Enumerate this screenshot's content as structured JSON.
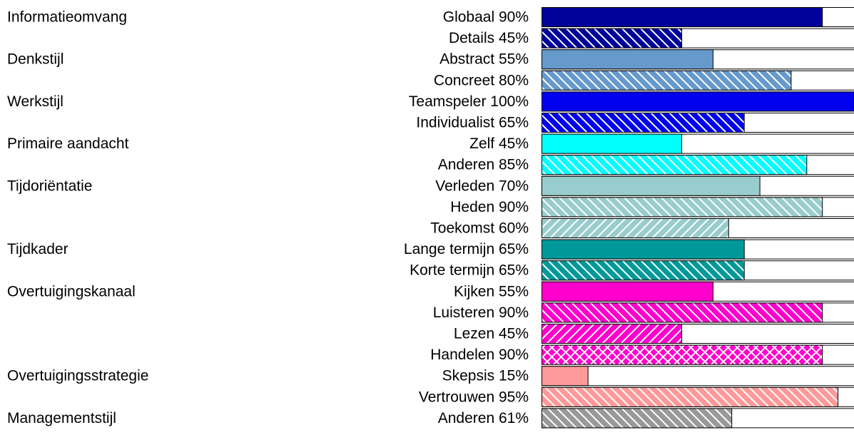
{
  "chart_data": {
    "type": "bar",
    "orientation": "horizontal",
    "xlim": [
      0,
      100
    ],
    "unit": "%",
    "groups": [
      {
        "label": "Informatieomvang",
        "rows": [
          {
            "label": "Globaal 90%",
            "value": 90,
            "color": "#00009B",
            "pattern": "solid"
          },
          {
            "label": "Details 45%",
            "value": 45,
            "color": "#00009B",
            "pattern": "back-diagonal"
          }
        ]
      },
      {
        "label": "Denkstijl",
        "rows": [
          {
            "label": "Abstract 55%",
            "value": 55,
            "color": "#6699CC",
            "pattern": "solid"
          },
          {
            "label": "Concreet 80%",
            "value": 80,
            "color": "#6699CC",
            "pattern": "back-diagonal"
          }
        ]
      },
      {
        "label": "Werkstijl",
        "rows": [
          {
            "label": "Teamspeler 100%",
            "value": 100,
            "color": "#0000EE",
            "pattern": "solid"
          },
          {
            "label": "Individualist 65%",
            "value": 65,
            "color": "#0000EE",
            "pattern": "back-diagonal"
          }
        ]
      },
      {
        "label": "Primaire aandacht",
        "rows": [
          {
            "label": "Zelf 45%",
            "value": 45,
            "color": "#00FFFF",
            "pattern": "solid"
          },
          {
            "label": "Anderen 85%",
            "value": 85,
            "color": "#00FFFF",
            "pattern": "back-diagonal"
          }
        ]
      },
      {
        "label": "Tijdoriëntatie",
        "rows": [
          {
            "label": "Verleden 70%",
            "value": 70,
            "color": "#99CCCC",
            "pattern": "solid"
          },
          {
            "label": "Heden 90%",
            "value": 90,
            "color": "#99CCCC",
            "pattern": "back-diagonal"
          },
          {
            "label": "Toekomst 60%",
            "value": 60,
            "color": "#99CCCC",
            "pattern": "forward-diagonal"
          }
        ]
      },
      {
        "label": "Tijdkader",
        "rows": [
          {
            "label": "Lange termijn 65%",
            "value": 65,
            "color": "#009999",
            "pattern": "solid"
          },
          {
            "label": "Korte termijn 65%",
            "value": 65,
            "color": "#009999",
            "pattern": "back-diagonal"
          }
        ]
      },
      {
        "label": "Overtuigingskanaal",
        "rows": [
          {
            "label": "Kijken 55%",
            "value": 55,
            "color": "#FF00CC",
            "pattern": "solid"
          },
          {
            "label": "Luisteren 90%",
            "value": 90,
            "color": "#FF00CC",
            "pattern": "back-diagonal"
          },
          {
            "label": "Lezen 45%",
            "value": 45,
            "color": "#FF00CC",
            "pattern": "forward-diagonal"
          },
          {
            "label": "Handelen 90%",
            "value": 90,
            "color": "#FF00CC",
            "pattern": "cross"
          }
        ]
      },
      {
        "label": "Overtuigingsstrategie",
        "rows": [
          {
            "label": "Skepsis 15%",
            "value": 15,
            "color": "#FF9999",
            "pattern": "solid"
          },
          {
            "label": "Vertrouwen 95%",
            "value": 95,
            "color": "#FF9999",
            "pattern": "back-diagonal"
          }
        ]
      },
      {
        "label": "Managementstijl",
        "rows": [
          {
            "label": "Anderen 61%",
            "value": 61,
            "color": "#999999",
            "pattern": "back-diagonal"
          }
        ]
      }
    ]
  }
}
